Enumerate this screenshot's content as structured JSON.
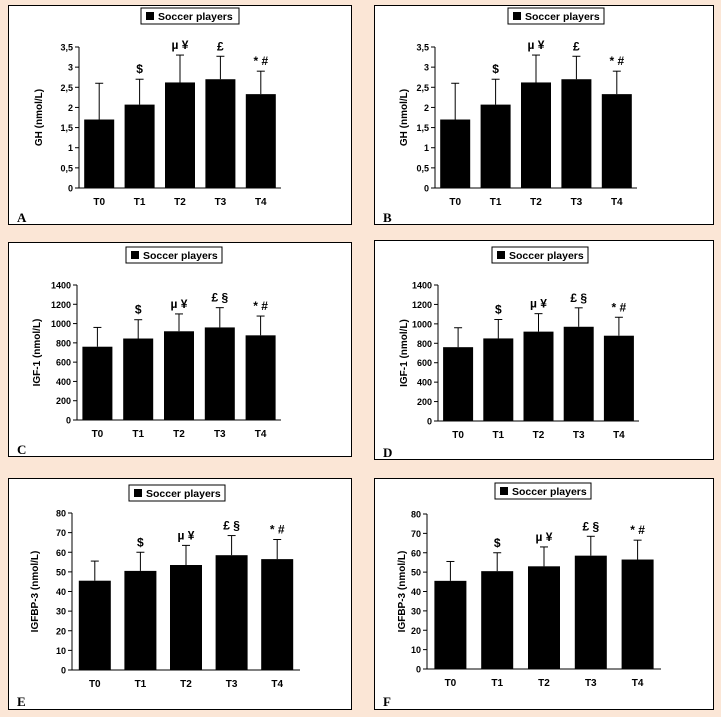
{
  "panels": [
    {
      "label": "A",
      "legend": "Soccer players",
      "ylabel": "GH (nmol/L)",
      "categories": [
        "T0",
        "T1",
        "T2",
        "T3",
        "T4"
      ],
      "yticks": [
        "0",
        "0,5",
        "1",
        "1,5",
        "2",
        "2,5",
        "3",
        "3,5"
      ],
      "ylim": [
        0,
        3.5
      ],
      "values": [
        1.7,
        2.07,
        2.62,
        2.7,
        2.33
      ],
      "errors": [
        0.9,
        0.63,
        0.68,
        0.57,
        0.57
      ],
      "annotations": [
        "",
        "$",
        "µ ¥",
        "£",
        "* #"
      ]
    },
    {
      "label": "B",
      "legend": "Soccer players",
      "ylabel": "GH (nmol/L)",
      "categories": [
        "T0",
        "T1",
        "T2",
        "T3",
        "T4"
      ],
      "yticks": [
        "0",
        "0,5",
        "1",
        "1,5",
        "2",
        "2,5",
        "3",
        "3,5"
      ],
      "ylim": [
        0,
        3.5
      ],
      "values": [
        1.7,
        2.07,
        2.62,
        2.7,
        2.33
      ],
      "errors": [
        0.9,
        0.63,
        0.68,
        0.57,
        0.57
      ],
      "annotations": [
        "",
        "$",
        "µ ¥",
        "£",
        "* #"
      ]
    },
    {
      "label": "C",
      "legend": "Soccer players",
      "ylabel": "IGF-1 (nmol/L)",
      "categories": [
        "T0",
        "T1",
        "T2",
        "T3",
        "T4"
      ],
      "yticks": [
        "0",
        "200",
        "400",
        "600",
        "800",
        "1000",
        "1200",
        "1400"
      ],
      "ylim": [
        0,
        1400
      ],
      "values": [
        760,
        845,
        920,
        960,
        878
      ],
      "errors": [
        200,
        195,
        180,
        205,
        200
      ],
      "annotations": [
        "",
        "$",
        "µ ¥",
        "£ §",
        "* #"
      ]
    },
    {
      "label": "D",
      "legend": "Soccer players",
      "ylabel": "IGF-1 (nmol/L)",
      "categories": [
        "T0",
        "T1",
        "T2",
        "T3",
        "T4"
      ],
      "yticks": [
        "0",
        "200",
        "400",
        "600",
        "800",
        "1000",
        "1200",
        "1400"
      ],
      "ylim": [
        0,
        1400
      ],
      "values": [
        760,
        850,
        920,
        970,
        878
      ],
      "errors": [
        200,
        195,
        185,
        195,
        190
      ],
      "annotations": [
        "",
        "$",
        "µ ¥",
        "£ §",
        "* #"
      ]
    },
    {
      "label": "E",
      "legend": "Soccer players",
      "ylabel": "IGFBP-3 (nmol/L)",
      "categories": [
        "T0",
        "T1",
        "T2",
        "T3",
        "T4"
      ],
      "yticks": [
        "0",
        "10",
        "20",
        "30",
        "40",
        "50",
        "60",
        "70",
        "80"
      ],
      "ylim": [
        0,
        80
      ],
      "values": [
        45.5,
        50.5,
        53.5,
        58.5,
        56.5
      ],
      "errors": [
        10,
        9.5,
        10,
        10,
        10
      ],
      "annotations": [
        "",
        "$",
        "µ ¥",
        "£ §",
        "* #"
      ]
    },
    {
      "label": "F",
      "legend": "Soccer players",
      "ylabel": "IGFBP-3 (nmol/L)",
      "categories": [
        "T0",
        "T1",
        "T2",
        "T3",
        "T4"
      ],
      "yticks": [
        "0",
        "10",
        "20",
        "30",
        "40",
        "50",
        "60",
        "70",
        "80"
      ],
      "ylim": [
        0,
        80
      ],
      "values": [
        45.5,
        50.5,
        53,
        58.5,
        56.5
      ],
      "errors": [
        10,
        9.5,
        10,
        10,
        10
      ],
      "annotations": [
        "",
        "$",
        "µ ¥",
        "£ §",
        "* #"
      ]
    }
  ],
  "chart_data": [
    {
      "type": "bar",
      "title": "",
      "legend": [
        "Soccer players"
      ],
      "ylabel": "GH (nmol/L)",
      "categories": [
        "T0",
        "T1",
        "T2",
        "T3",
        "T4"
      ],
      "series": [
        {
          "name": "Soccer players",
          "values": [
            1.7,
            2.07,
            2.62,
            2.7,
            2.33
          ],
          "errors": [
            0.9,
            0.63,
            0.68,
            0.57,
            0.57
          ]
        }
      ],
      "ylim": [
        0,
        3.5
      ]
    },
    {
      "type": "bar",
      "title": "",
      "legend": [
        "Soccer players"
      ],
      "ylabel": "GH (nmol/L)",
      "categories": [
        "T0",
        "T1",
        "T2",
        "T3",
        "T4"
      ],
      "series": [
        {
          "name": "Soccer players",
          "values": [
            1.7,
            2.07,
            2.62,
            2.7,
            2.33
          ],
          "errors": [
            0.9,
            0.63,
            0.68,
            0.57,
            0.57
          ]
        }
      ],
      "ylim": [
        0,
        3.5
      ]
    },
    {
      "type": "bar",
      "title": "",
      "legend": [
        "Soccer players"
      ],
      "ylabel": "IGF-1 (nmol/L)",
      "categories": [
        "T0",
        "T1",
        "T2",
        "T3",
        "T4"
      ],
      "series": [
        {
          "name": "Soccer players",
          "values": [
            760,
            845,
            920,
            960,
            878
          ],
          "errors": [
            200,
            195,
            180,
            205,
            200
          ]
        }
      ],
      "ylim": [
        0,
        1400
      ]
    },
    {
      "type": "bar",
      "title": "",
      "legend": [
        "Soccer players"
      ],
      "ylabel": "IGF-1 (nmol/L)",
      "categories": [
        "T0",
        "T1",
        "T2",
        "T3",
        "T4"
      ],
      "series": [
        {
          "name": "Soccer players",
          "values": [
            760,
            850,
            920,
            970,
            878
          ],
          "errors": [
            200,
            195,
            185,
            195,
            190
          ]
        }
      ],
      "ylim": [
        0,
        1400
      ]
    },
    {
      "type": "bar",
      "title": "",
      "legend": [
        "Soccer players"
      ],
      "ylabel": "IGFBP-3 (nmol/L)",
      "categories": [
        "T0",
        "T1",
        "T2",
        "T3",
        "T4"
      ],
      "series": [
        {
          "name": "Soccer players",
          "values": [
            45.5,
            50.5,
            53.5,
            58.5,
            56.5
          ],
          "errors": [
            10,
            9.5,
            10,
            10,
            10
          ]
        }
      ],
      "ylim": [
        0,
        80
      ]
    },
    {
      "type": "bar",
      "title": "",
      "legend": [
        "Soccer players"
      ],
      "ylabel": "IGFBP-3 (nmol/L)",
      "categories": [
        "T0",
        "T1",
        "T2",
        "T3",
        "T4"
      ],
      "series": [
        {
          "name": "Soccer players",
          "values": [
            45.5,
            50.5,
            53,
            58.5,
            56.5
          ],
          "errors": [
            10,
            9.5,
            10,
            10,
            10
          ]
        }
      ],
      "ylim": [
        0,
        80
      ]
    }
  ]
}
